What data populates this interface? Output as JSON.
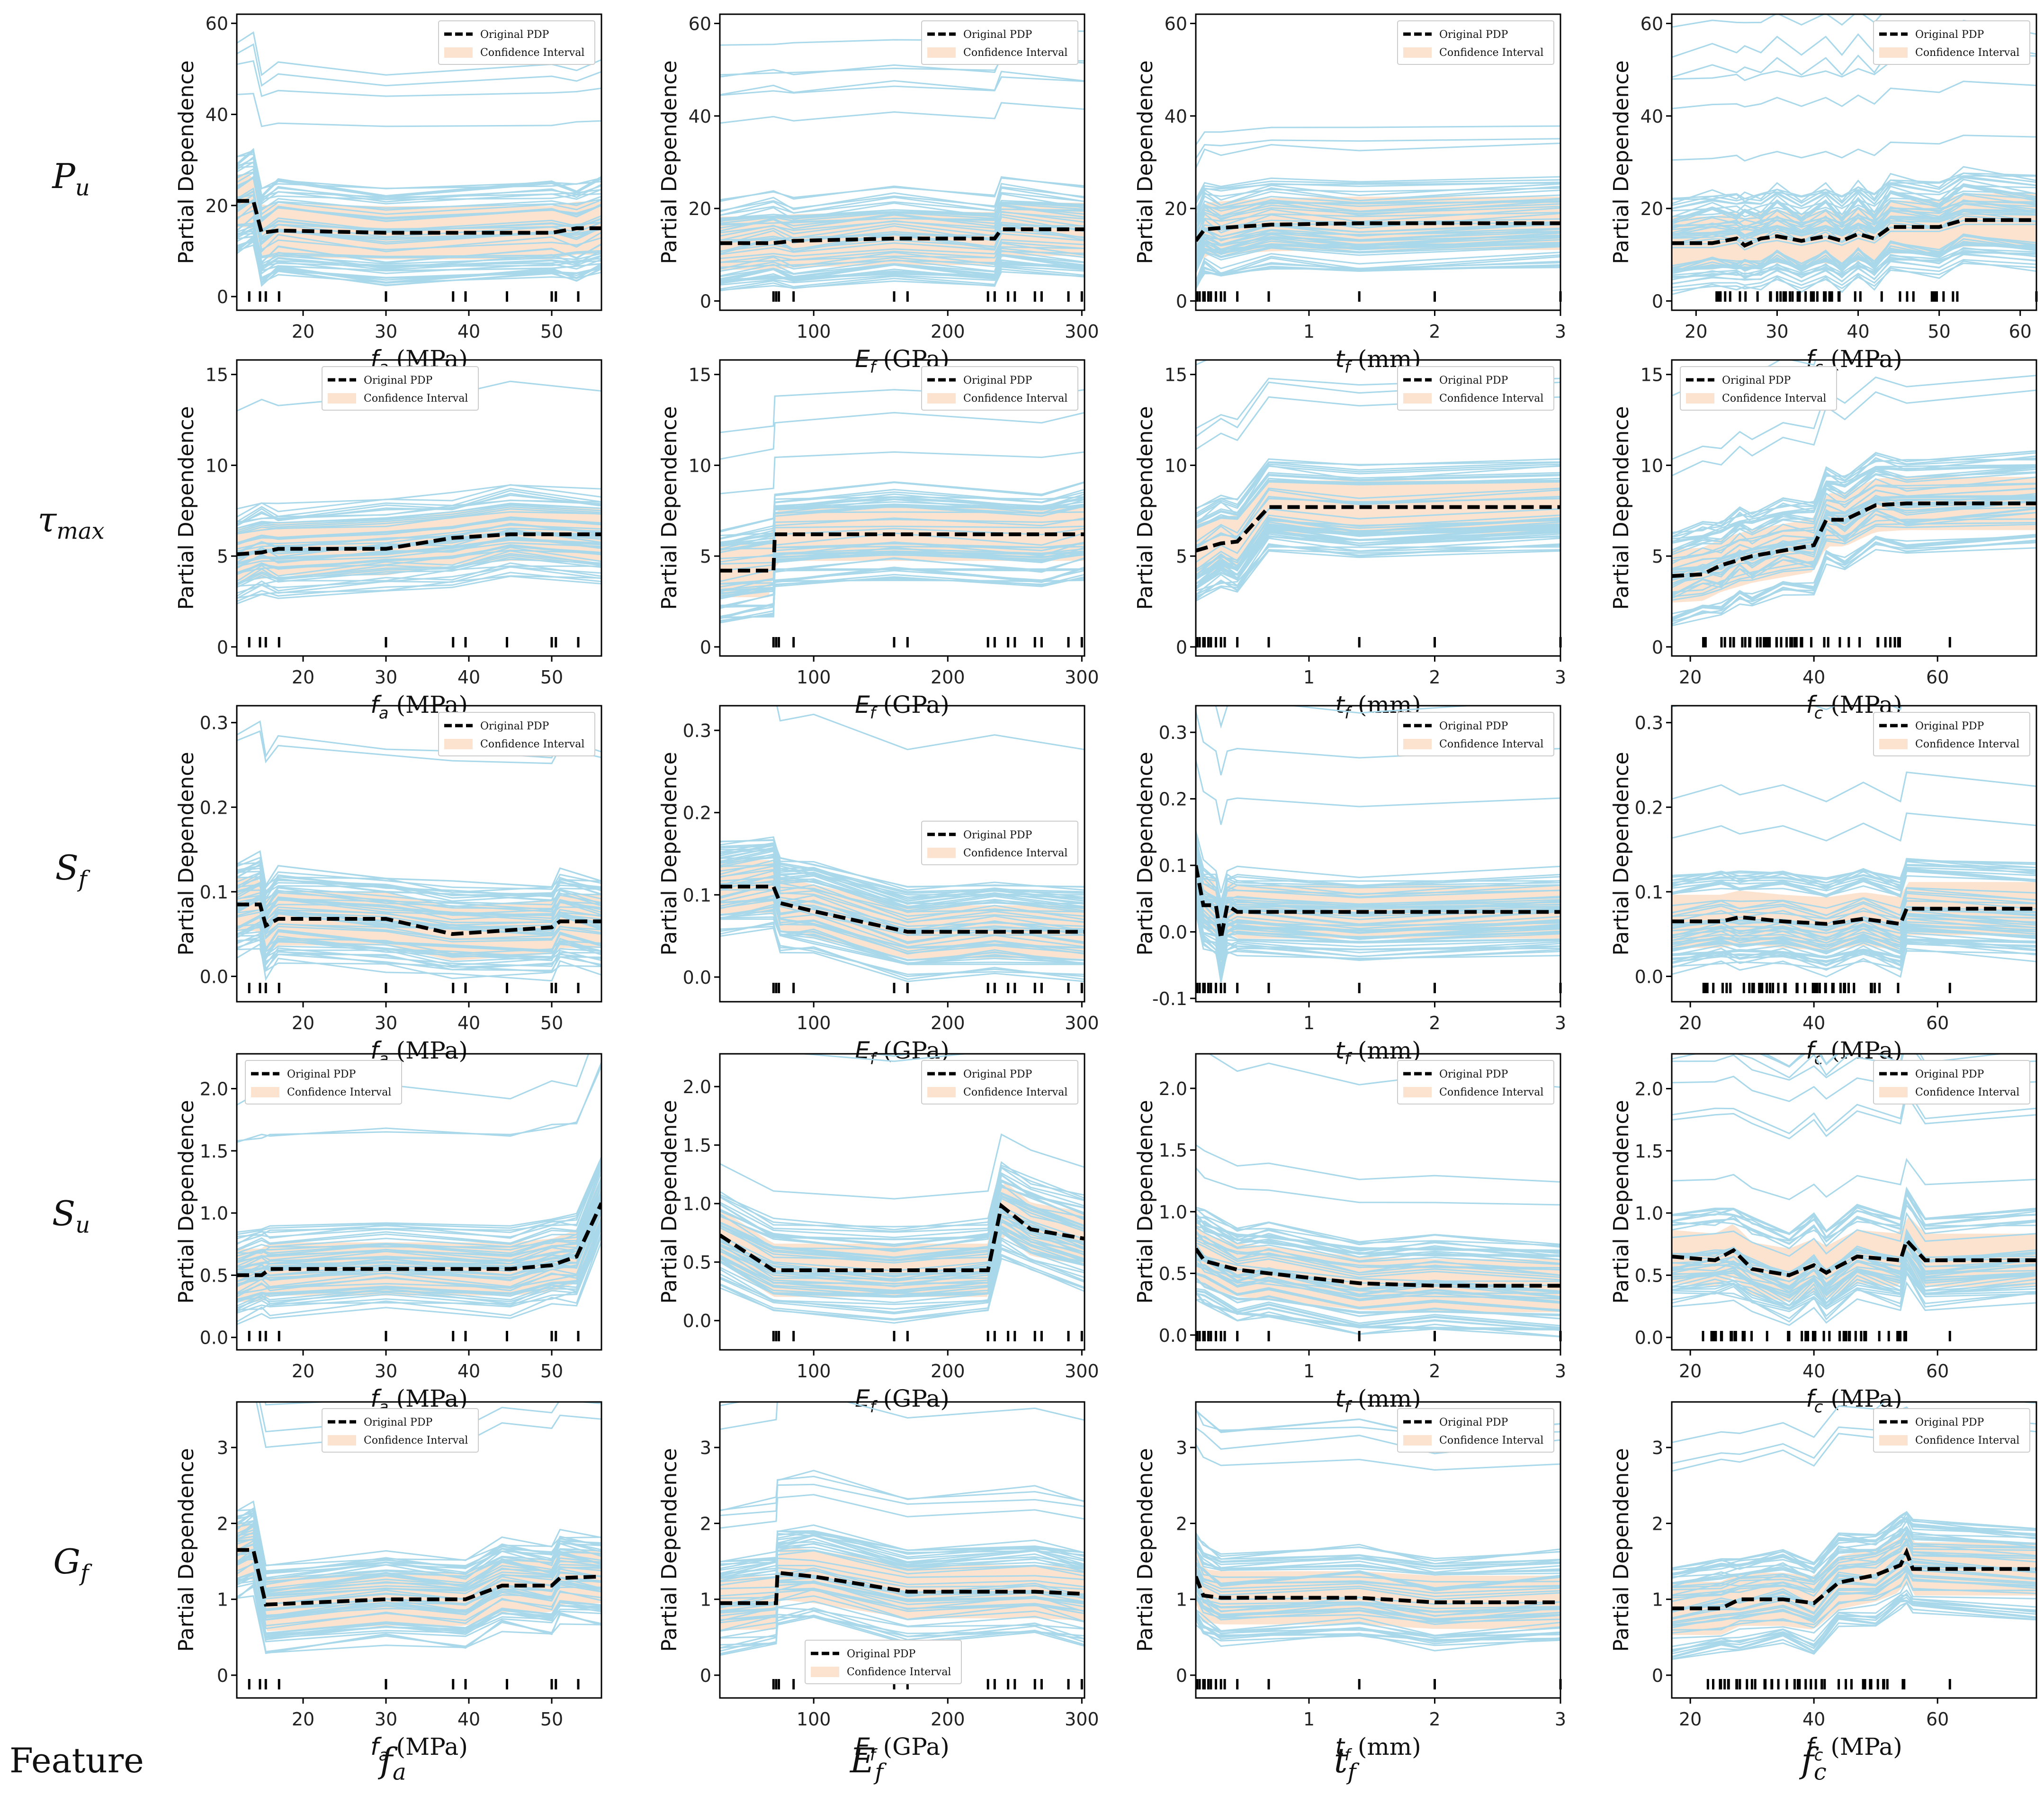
{
  "figure": {
    "feature_label": "Feature",
    "row_labels": [
      {
        "main": "P",
        "sub": "u"
      },
      {
        "main": "τ",
        "sub": "max"
      },
      {
        "main": "S",
        "sub": "f"
      },
      {
        "main": "S",
        "sub": "u"
      },
      {
        "main": "G",
        "sub": "f"
      }
    ],
    "column_labels": [
      {
        "main": "f",
        "sub": "a"
      },
      {
        "main": "E",
        "sub": "f"
      },
      {
        "main": "t",
        "sub": "f"
      },
      {
        "main": "f",
        "sub": "c"
      }
    ]
  },
  "colors": {
    "ice_line": "#a8d8ea",
    "pdp_line": "#000000",
    "confidence_band": "#fbe3d0",
    "axis": "#000000"
  },
  "chart_data": {
    "type": "line",
    "kind": "ICE / partial dependence grid",
    "ylabel": "Partial Dependence",
    "legend_entries": [
      "Original PDP",
      "Confidence Interval"
    ],
    "columns": [
      {
        "feature": "f_a",
        "xlabel_sym": "f",
        "xlabel_sub": "a",
        "xlabel_unit": " (MPa)",
        "xlim": [
          12,
          56
        ],
        "xticks": [
          20,
          30,
          40,
          50
        ],
        "rug": [
          13.5,
          14.8,
          15.5,
          17.1,
          30,
          38.1,
          39.6,
          44.6,
          50,
          50.5,
          53.2
        ]
      },
      {
        "feature": "E_f",
        "xlabel_sym": "E",
        "xlabel_sub": "f",
        "xlabel_unit": " (GPa)",
        "xlim": [
          30,
          302
        ],
        "xticks": [
          100,
          200,
          300
        ],
        "rug": [
          70,
          72,
          74,
          85,
          160,
          170,
          230,
          235,
          245,
          250,
          265,
          270,
          290,
          300
        ]
      },
      {
        "feature": "t_f",
        "xlabel_sym": "t",
        "xlabel_sub": "f",
        "xlabel_unit": " (mm)",
        "xlim": [
          0.1,
          3.0
        ],
        "xticks": [
          1,
          2,
          3
        ],
        "rug": [
          0.11,
          0.13,
          0.16,
          0.17,
          0.2,
          0.22,
          0.26,
          0.3,
          0.33,
          0.43,
          0.68,
          1.4,
          2.0,
          3.0
        ]
      },
      {
        "feature": "f_c",
        "xlabel_sym": "f",
        "xlabel_sub": "c",
        "xlabel_unit": " (MPa)",
        "xticks_note": "varies by row",
        "rug_note": "dense between 22 and 55"
      }
    ],
    "panels": [
      {
        "row": "P_u",
        "col": "f_a",
        "xlim": [
          12,
          56
        ],
        "ylim": [
          -3,
          62
        ],
        "yticks": [
          0,
          20,
          40,
          60
        ],
        "legend": "top-right",
        "pdp": [
          [
            12,
            21
          ],
          [
            14,
            21
          ],
          [
            15,
            14
          ],
          [
            17,
            14.5
          ],
          [
            30,
            14
          ],
          [
            50,
            14
          ],
          [
            53,
            15
          ],
          [
            56,
            15
          ]
        ]
      },
      {
        "row": "P_u",
        "col": "E_f",
        "xlim": [
          30,
          302
        ],
        "ylim": [
          -2,
          62
        ],
        "yticks": [
          0,
          20,
          40,
          60
        ],
        "legend": "top-right",
        "pdp": [
          [
            30,
            12.5
          ],
          [
            70,
            12.5
          ],
          [
            85,
            13
          ],
          [
            160,
            13.5
          ],
          [
            235,
            13.5
          ],
          [
            240,
            15.5
          ],
          [
            302,
            15.5
          ]
        ]
      },
      {
        "row": "P_u",
        "col": "t_f",
        "xlim": [
          0.1,
          3.0
        ],
        "ylim": [
          -2,
          62
        ],
        "yticks": [
          0,
          20,
          40,
          60
        ],
        "legend": "top-right",
        "pdp": [
          [
            0.1,
            13
          ],
          [
            0.17,
            15.5
          ],
          [
            0.3,
            15.8
          ],
          [
            0.7,
            16.5
          ],
          [
            1.4,
            16.8
          ],
          [
            3.0,
            16.8
          ]
        ]
      },
      {
        "row": "P_u",
        "col": "f_c",
        "xlim": [
          17,
          62
        ],
        "ylim": [
          -2,
          62
        ],
        "yticks": [
          0,
          20,
          40,
          60
        ],
        "xticks": [
          20,
          30,
          40,
          50,
          60
        ],
        "legend": "top-right",
        "pdp": [
          [
            17,
            12.5
          ],
          [
            22,
            12.5
          ],
          [
            25,
            13.5
          ],
          [
            26,
            12
          ],
          [
            28,
            13.5
          ],
          [
            30,
            14
          ],
          [
            33,
            13
          ],
          [
            36,
            14
          ],
          [
            38,
            13
          ],
          [
            40,
            14.5
          ],
          [
            42,
            13.5
          ],
          [
            44,
            16
          ],
          [
            50,
            16
          ],
          [
            53,
            17.5
          ],
          [
            62,
            17.5
          ]
        ]
      },
      {
        "row": "τ_max",
        "col": "f_a",
        "xlim": [
          12,
          56
        ],
        "ylim": [
          -0.5,
          15.8
        ],
        "yticks": [
          0,
          5,
          10,
          15
        ],
        "legend": "top-center",
        "pdp": [
          [
            12,
            5.1
          ],
          [
            15,
            5.2
          ],
          [
            17,
            5.4
          ],
          [
            30,
            5.4
          ],
          [
            38,
            6.0
          ],
          [
            45,
            6.2
          ],
          [
            56,
            6.2
          ]
        ]
      },
      {
        "row": "τ_max",
        "col": "E_f",
        "xlim": [
          30,
          302
        ],
        "ylim": [
          -0.5,
          15.8
        ],
        "yticks": [
          0,
          5,
          10,
          15
        ],
        "legend": "top-right",
        "pdp": [
          [
            30,
            4.2
          ],
          [
            70,
            4.2
          ],
          [
            71,
            6.2
          ],
          [
            160,
            6.2
          ],
          [
            270,
            6.2
          ],
          [
            302,
            6.2
          ]
        ]
      },
      {
        "row": "τ_max",
        "col": "t_f",
        "xlim": [
          0.1,
          3.0
        ],
        "ylim": [
          -0.5,
          15.8
        ],
        "yticks": [
          0,
          5,
          10,
          15
        ],
        "legend": "top-right",
        "pdp": [
          [
            0.1,
            5.3
          ],
          [
            0.3,
            5.7
          ],
          [
            0.43,
            5.8
          ],
          [
            0.68,
            7.7
          ],
          [
            1.4,
            7.7
          ],
          [
            3.0,
            7.7
          ]
        ]
      },
      {
        "row": "τ_max",
        "col": "f_c",
        "xlim": [
          17,
          76
        ],
        "ylim": [
          -0.5,
          15.8
        ],
        "yticks": [
          0,
          5,
          10,
          15
        ],
        "xticks": [
          20,
          40,
          60
        ],
        "legend": "top-left",
        "pdp": [
          [
            17,
            3.9
          ],
          [
            22,
            4.0
          ],
          [
            25,
            4.5
          ],
          [
            28,
            4.8
          ],
          [
            30,
            5.0
          ],
          [
            35,
            5.3
          ],
          [
            40,
            5.6
          ],
          [
            42,
            7.0
          ],
          [
            45,
            7.0
          ],
          [
            50,
            7.8
          ],
          [
            55,
            7.9
          ],
          [
            76,
            7.9
          ]
        ]
      },
      {
        "row": "S_f",
        "col": "f_a",
        "xlim": [
          12,
          56
        ],
        "ylim": [
          -0.03,
          0.32
        ],
        "yticks": [
          0.0,
          0.1,
          0.2,
          0.3
        ],
        "legend": "top-right",
        "pdp": [
          [
            12,
            0.085
          ],
          [
            14.8,
            0.085
          ],
          [
            15.5,
            0.06
          ],
          [
            17,
            0.068
          ],
          [
            30,
            0.068
          ],
          [
            38,
            0.05
          ],
          [
            50,
            0.058
          ],
          [
            51,
            0.065
          ],
          [
            56,
            0.065
          ]
        ]
      },
      {
        "row": "S_f",
        "col": "E_f",
        "xlim": [
          30,
          302
        ],
        "ylim": [
          -0.03,
          0.33
        ],
        "yticks": [
          0.0,
          0.1,
          0.2,
          0.3
        ],
        "legend": "center-right",
        "pdp": [
          [
            30,
            0.11
          ],
          [
            70,
            0.11
          ],
          [
            75,
            0.09
          ],
          [
            100,
            0.08
          ],
          [
            170,
            0.055
          ],
          [
            235,
            0.055
          ],
          [
            302,
            0.055
          ]
        ]
      },
      {
        "row": "S_f",
        "col": "t_f",
        "xlim": [
          0.1,
          3.0
        ],
        "ylim": [
          -0.105,
          0.34
        ],
        "yticks": [
          -0.1,
          0.0,
          0.1,
          0.2,
          0.3
        ],
        "legend": "top-right",
        "pdp": [
          [
            0.1,
            0.1
          ],
          [
            0.16,
            0.04
          ],
          [
            0.26,
            0.04
          ],
          [
            0.3,
            -0.01
          ],
          [
            0.35,
            0.04
          ],
          [
            0.43,
            0.03
          ],
          [
            1.4,
            0.03
          ],
          [
            3.0,
            0.03
          ]
        ]
      },
      {
        "row": "S_f",
        "col": "f_c",
        "xlim": [
          17,
          76
        ],
        "ylim": [
          -0.03,
          0.32
        ],
        "yticks": [
          0.0,
          0.1,
          0.2,
          0.3
        ],
        "xticks": [
          20,
          40,
          60
        ],
        "legend": "top-right",
        "pdp": [
          [
            17,
            0.065
          ],
          [
            25,
            0.065
          ],
          [
            28,
            0.07
          ],
          [
            35,
            0.065
          ],
          [
            42,
            0.062
          ],
          [
            48,
            0.068
          ],
          [
            54,
            0.062
          ],
          [
            55,
            0.08
          ],
          [
            76,
            0.08
          ]
        ]
      },
      {
        "row": "S_u",
        "col": "f_a",
        "xlim": [
          12,
          56
        ],
        "ylim": [
          -0.1,
          2.28
        ],
        "yticks": [
          0.0,
          0.5,
          1.0,
          1.5,
          2.0
        ],
        "legend": "top-left",
        "pdp": [
          [
            12,
            0.5
          ],
          [
            15,
            0.5
          ],
          [
            16,
            0.55
          ],
          [
            30,
            0.55
          ],
          [
            45,
            0.55
          ],
          [
            50,
            0.58
          ],
          [
            53,
            0.65
          ],
          [
            56,
            1.08
          ]
        ]
      },
      {
        "row": "S_u",
        "col": "E_f",
        "xlim": [
          30,
          302
        ],
        "ylim": [
          -0.25,
          2.28
        ],
        "yticks": [
          0.0,
          0.5,
          1.0,
          1.5,
          2.0
        ],
        "legend": "top-right",
        "pdp": [
          [
            30,
            0.73
          ],
          [
            70,
            0.43
          ],
          [
            160,
            0.43
          ],
          [
            230,
            0.43
          ],
          [
            240,
            0.98
          ],
          [
            262,
            0.78
          ],
          [
            302,
            0.7
          ]
        ]
      },
      {
        "row": "S_u",
        "col": "t_f",
        "xlim": [
          0.1,
          3.0
        ],
        "ylim": [
          -0.12,
          2.28
        ],
        "yticks": [
          0.0,
          0.5,
          1.0,
          1.5,
          2.0
        ],
        "legend": "top-right",
        "pdp": [
          [
            0.1,
            0.7
          ],
          [
            0.17,
            0.6
          ],
          [
            0.43,
            0.53
          ],
          [
            0.68,
            0.5
          ],
          [
            1.4,
            0.42
          ],
          [
            2.0,
            0.4
          ],
          [
            3.0,
            0.4
          ]
        ]
      },
      {
        "row": "S_u",
        "col": "f_c",
        "xlim": [
          17,
          76
        ],
        "ylim": [
          -0.1,
          2.28
        ],
        "yticks": [
          0.0,
          0.5,
          1.0,
          1.5,
          2.0
        ],
        "xticks": [
          20,
          40,
          60
        ],
        "legend": "top-right",
        "pdp": [
          [
            17,
            0.65
          ],
          [
            24,
            0.62
          ],
          [
            27,
            0.7
          ],
          [
            30,
            0.55
          ],
          [
            36,
            0.5
          ],
          [
            40,
            0.58
          ],
          [
            42,
            0.52
          ],
          [
            47,
            0.65
          ],
          [
            54,
            0.62
          ],
          [
            55,
            0.78
          ],
          [
            58,
            0.62
          ],
          [
            76,
            0.62
          ]
        ]
      },
      {
        "row": "G_f",
        "col": "f_a",
        "xlim": [
          12,
          56
        ],
        "ylim": [
          -0.3,
          3.6
        ],
        "yticks": [
          0,
          1,
          2,
          3
        ],
        "legend": "top-center",
        "pdp": [
          [
            12,
            1.65
          ],
          [
            14,
            1.65
          ],
          [
            15.5,
            0.93
          ],
          [
            30,
            1.0
          ],
          [
            39.6,
            1.0
          ],
          [
            44,
            1.18
          ],
          [
            50,
            1.18
          ],
          [
            51,
            1.28
          ],
          [
            56,
            1.3
          ]
        ]
      },
      {
        "row": "G_f",
        "col": "E_f",
        "xlim": [
          30,
          302
        ],
        "ylim": [
          -0.3,
          3.6
        ],
        "yticks": [
          0,
          1,
          2,
          3
        ],
        "legend": "bottom-center",
        "pdp": [
          [
            30,
            0.95
          ],
          [
            72,
            0.95
          ],
          [
            73,
            1.35
          ],
          [
            100,
            1.3
          ],
          [
            170,
            1.1
          ],
          [
            265,
            1.1
          ],
          [
            302,
            1.07
          ]
        ]
      },
      {
        "row": "G_f",
        "col": "t_f",
        "xlim": [
          0.1,
          3.0
        ],
        "ylim": [
          -0.3,
          3.6
        ],
        "yticks": [
          0,
          1,
          2,
          3
        ],
        "legend": "top-right",
        "pdp": [
          [
            0.1,
            1.3
          ],
          [
            0.16,
            1.05
          ],
          [
            0.3,
            1.02
          ],
          [
            1.4,
            1.02
          ],
          [
            2.0,
            0.96
          ],
          [
            3.0,
            0.96
          ]
        ]
      },
      {
        "row": "G_f",
        "col": "f_c",
        "xlim": [
          17,
          76
        ],
        "ylim": [
          -0.3,
          3.6
        ],
        "yticks": [
          0,
          1,
          2,
          3
        ],
        "xticks": [
          20,
          40,
          60
        ],
        "legend": "top-right",
        "pdp": [
          [
            17,
            0.88
          ],
          [
            25,
            0.88
          ],
          [
            28,
            1.0
          ],
          [
            35,
            1.0
          ],
          [
            40,
            0.95
          ],
          [
            44,
            1.22
          ],
          [
            50,
            1.32
          ],
          [
            54,
            1.45
          ],
          [
            55,
            1.62
          ],
          [
            56,
            1.4
          ],
          [
            76,
            1.4
          ]
        ]
      }
    ]
  }
}
